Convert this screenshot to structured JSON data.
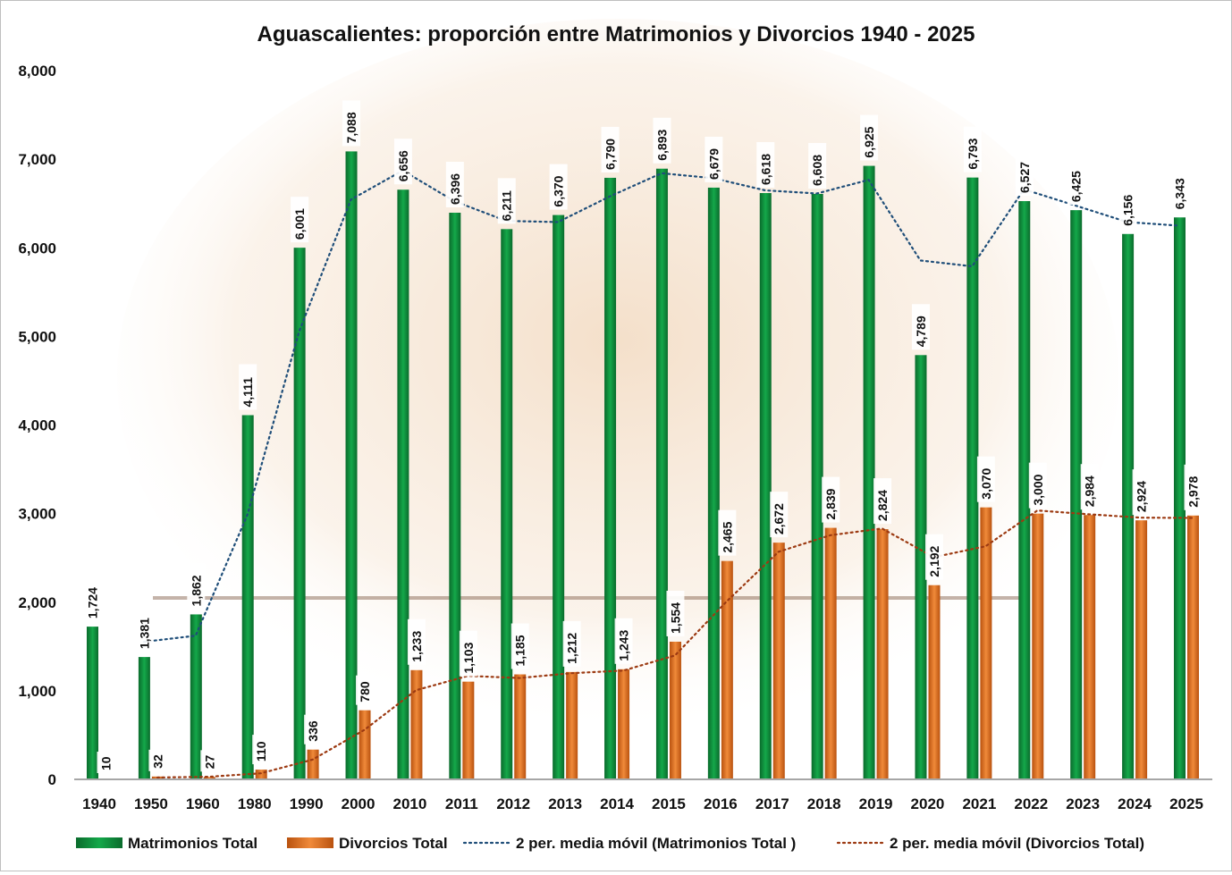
{
  "chart_data": {
    "type": "bar",
    "title": "Aguascalientes: proporción entre Matrimonios y Divorcios 1940 - 2025",
    "xlabel": "",
    "ylabel": "",
    "ylim": [
      0,
      8000
    ],
    "yticks": [
      "0",
      "1,000",
      "2,000",
      "3,000",
      "4,000",
      "5,000",
      "6,000",
      "7,000",
      "8,000"
    ],
    "grid": false,
    "legend_position": "bottom",
    "categories": [
      "1940",
      "1950",
      "1960",
      "1980",
      "1990",
      "2000",
      "2010",
      "2011",
      "2012",
      "2013",
      "2014",
      "2015",
      "2016",
      "2017",
      "2018",
      "2019",
      "2020",
      "2021",
      "2022",
      "2023",
      "2024",
      "2025"
    ],
    "series": [
      {
        "name": "Matrimonios Total",
        "type": "bar",
        "color": "#0f8a3c",
        "values": [
          1724,
          1381,
          1862,
          4111,
          6001,
          7088,
          6656,
          6396,
          6211,
          6370,
          6790,
          6893,
          6679,
          6618,
          6608,
          6925,
          4789,
          6793,
          6527,
          6425,
          6156,
          6343
        ],
        "labels": [
          "1,724",
          "1,381",
          "1,862",
          "4,111",
          "6,001",
          "7,088",
          "6,656",
          "6,396",
          "6,211",
          "6,370",
          "6,790",
          "6,893",
          "6,679",
          "6,618",
          "6,608",
          "6,925",
          "4,789",
          "6,793",
          "6,527",
          "6,425",
          "6,156",
          "6,343"
        ]
      },
      {
        "name": "Divorcios Total",
        "type": "bar",
        "color": "#e0701e",
        "values": [
          10,
          32,
          27,
          110,
          336,
          780,
          1233,
          1103,
          1185,
          1212,
          1243,
          1554,
          2465,
          2672,
          2839,
          2824,
          2192,
          3070,
          3000,
          2984,
          2924,
          2978
        ],
        "labels": [
          "10",
          "32",
          "27",
          "110",
          "336",
          "780",
          "1,233",
          "1,103",
          "1,185",
          "1,212",
          "1,243",
          "1,554",
          "2,465",
          "2,672",
          "2,839",
          "2,824",
          "2,192",
          "3,070",
          "3,000",
          "2,984",
          "2,924",
          "2,978"
        ]
      },
      {
        "name": "2 per. media móvil (Matrimonios Total )",
        "type": "line",
        "style": "dotted",
        "color": "#1f4e79",
        "of": 0
      },
      {
        "name": "2 per. media móvil (Divorcios Total)",
        "type": "line",
        "style": "dotted",
        "color": "#9c3a12",
        "of": 1
      }
    ]
  }
}
